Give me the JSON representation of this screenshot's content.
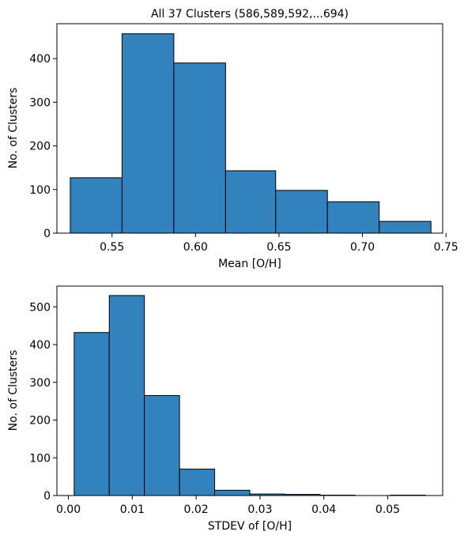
{
  "chart_data": [
    {
      "type": "bar",
      "title": "All 37 Clusters (586,589,592,...694)",
      "xlabel": "Mean [O/H]",
      "ylabel": "No. of Clusters",
      "xlim": [
        0.517,
        0.748
      ],
      "ylim": [
        0,
        480
      ],
      "xticks": [
        "0.55",
        "0.60",
        "0.65",
        "0.70",
        "0.75"
      ],
      "xtick_values": [
        0.55,
        0.6,
        0.65,
        0.7,
        0.75
      ],
      "yticks": [
        "0",
        "100",
        "200",
        "300",
        "400"
      ],
      "ytick_values": [
        0,
        100,
        200,
        300,
        400
      ],
      "bin_edges": [
        0.525,
        0.556,
        0.587,
        0.618,
        0.648,
        0.679,
        0.71,
        0.741
      ],
      "values": [
        127,
        457,
        390,
        143,
        98,
        72,
        27
      ],
      "color": "#3182bd",
      "edgecolor": "#000000"
    },
    {
      "type": "bar",
      "title": "",
      "xlabel": "STDEV of [O/H]",
      "ylabel": "No. of Clusters",
      "xlim": [
        -0.0018,
        0.0586
      ],
      "ylim": [
        0,
        555
      ],
      "xticks": [
        "0.00",
        "0.01",
        "0.02",
        "0.03",
        "0.04",
        "0.05"
      ],
      "xtick_values": [
        0.0,
        0.01,
        0.02,
        0.03,
        0.04,
        0.05
      ],
      "yticks": [
        "0",
        "100",
        "200",
        "300",
        "400",
        "500"
      ],
      "ytick_values": [
        0,
        100,
        200,
        300,
        400,
        500
      ],
      "bin_edges": [
        0.0009,
        0.0064,
        0.0119,
        0.0174,
        0.0229,
        0.0284,
        0.0339,
        0.0394,
        0.0449,
        0.0504,
        0.0559
      ],
      "values": [
        432,
        530,
        265,
        70,
        14,
        4,
        3,
        1,
        0,
        1
      ],
      "color": "#3182bd",
      "edgecolor": "#000000"
    }
  ]
}
